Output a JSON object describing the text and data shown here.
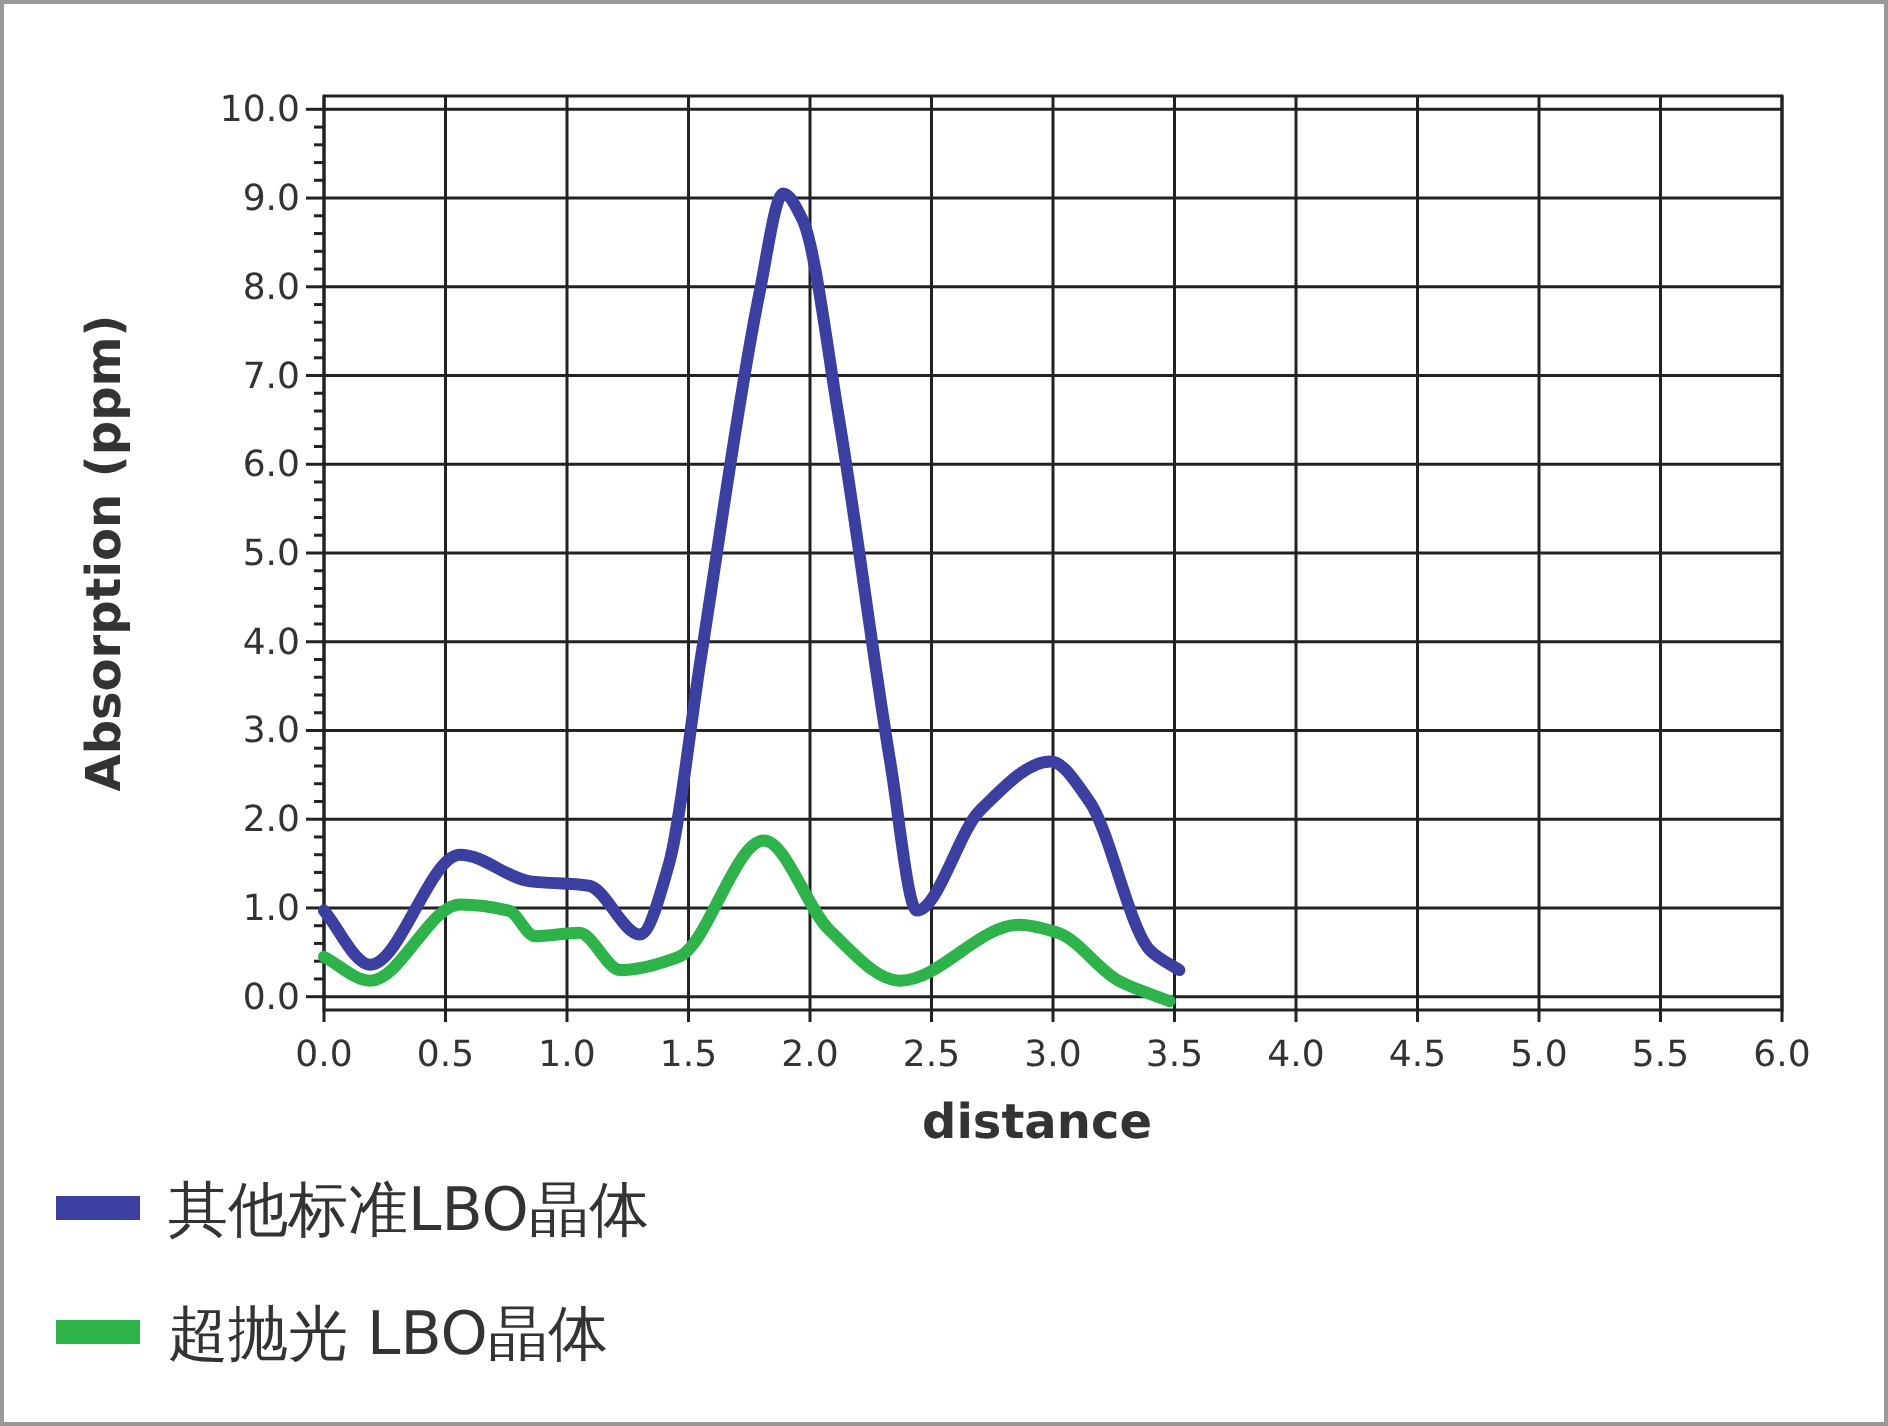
{
  "chart_data": {
    "type": "line",
    "xlabel": "distance",
    "ylabel": "Absorption (ppm)",
    "xlim": [
      0,
      6
    ],
    "xticks": [
      {
        "value": 0,
        "label": "0.0"
      },
      {
        "value": 0.5,
        "label": "0.5"
      },
      {
        "value": 1,
        "label": "1.0"
      },
      {
        "value": 1.5,
        "label": "1.5"
      },
      {
        "value": 2,
        "label": "2.0"
      },
      {
        "value": 2.5,
        "label": "2.5"
      },
      {
        "value": 3,
        "label": "3.0"
      },
      {
        "value": 3.5,
        "label": "3.5"
      },
      {
        "value": 4,
        "label": "4.0"
      },
      {
        "value": 4.5,
        "label": "4.5"
      },
      {
        "value": 5,
        "label": "5.0"
      },
      {
        "value": 5.5,
        "label": "5.5"
      },
      {
        "value": 6,
        "label": "6.0"
      }
    ],
    "ylim": [
      -0.15,
      10.15
    ],
    "yticks": [
      {
        "value": 0,
        "label": "0.0"
      },
      {
        "value": 1,
        "label": "1.0"
      },
      {
        "value": 2,
        "label": "2.0"
      },
      {
        "value": 3,
        "label": "3.0"
      },
      {
        "value": 4,
        "label": "4.0"
      },
      {
        "value": 5,
        "label": "5.0"
      },
      {
        "value": 6,
        "label": "6.0"
      },
      {
        "value": 7,
        "label": "7.0"
      },
      {
        "value": 8,
        "label": "8.0"
      },
      {
        "value": 9,
        "label": "9.0"
      },
      {
        "value": 10,
        "label": "10.0"
      }
    ],
    "grid": true,
    "legend": "bottom",
    "marker": "none",
    "line_style": "solid",
    "series": [
      {
        "name": "其他标准LBO晶体",
        "color": "#3a3fa0",
        "x": [
          0,
          0.19,
          0.56,
          0.85,
          1.09,
          1.3,
          1.42,
          1.55,
          1.79,
          1.89,
          1.97,
          2.12,
          2.33,
          2.44,
          2.7,
          2.99,
          3.15,
          3.4,
          3.52
        ],
        "values": [
          0.97,
          0.36,
          1.6,
          1.3,
          1.25,
          0.7,
          1.5,
          3.8,
          7.9,
          9.05,
          8.75,
          6.5,
          2.65,
          0.97,
          2.1,
          2.65,
          2.2,
          0.52,
          0.3
        ]
      },
      {
        "name": "超抛光 LBO晶体",
        "color": "#2db34a",
        "x": [
          0,
          0.19,
          0.56,
          0.76,
          0.87,
          1.05,
          1.22,
          1.46,
          1.81,
          2.08,
          2.37,
          2.86,
          3.02,
          3.27,
          3.48
        ],
        "values": [
          0.45,
          0.18,
          1.04,
          0.97,
          0.68,
          0.72,
          0.3,
          0.45,
          1.76,
          0.75,
          0.18,
          0.81,
          0.72,
          0.18,
          -0.05
        ]
      }
    ]
  }
}
